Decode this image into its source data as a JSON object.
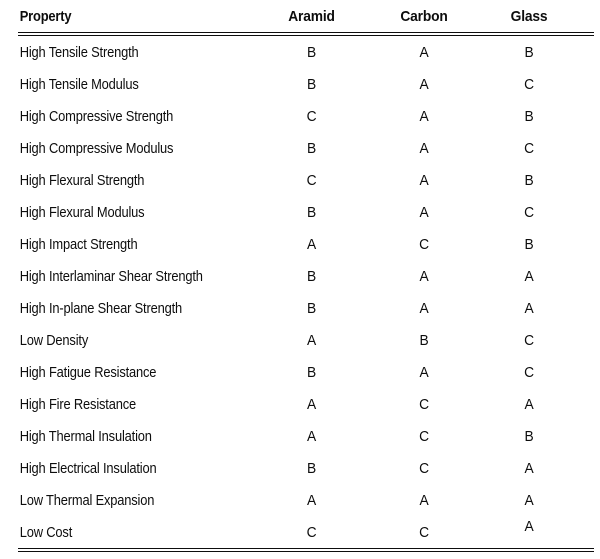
{
  "table": {
    "columns": [
      "Property",
      "Aramid",
      "Carbon",
      "Glass"
    ],
    "rows": [
      {
        "property": "High Tensile Strength",
        "aramid": "B",
        "carbon": "A",
        "glass": "B"
      },
      {
        "property": "High Tensile Modulus",
        "aramid": "B",
        "carbon": "A",
        "glass": "C"
      },
      {
        "property": "High Compressive Strength",
        "aramid": "C",
        "carbon": "A",
        "glass": "B"
      },
      {
        "property": "High Compressive Modulus",
        "aramid": "B",
        "carbon": "A",
        "glass": "C"
      },
      {
        "property": "High Flexural Strength",
        "aramid": "C",
        "carbon": "A",
        "glass": "B"
      },
      {
        "property": "High Flexural Modulus",
        "aramid": "B",
        "carbon": "A",
        "glass": "C"
      },
      {
        "property": "High Impact Strength",
        "aramid": "A",
        "carbon": "C",
        "glass": "B"
      },
      {
        "property": "High Interlaminar Shear Strength",
        "aramid": "B",
        "carbon": "A",
        "glass": "A"
      },
      {
        "property": "High In-plane Shear Strength",
        "aramid": "B",
        "carbon": "A",
        "glass": "A"
      },
      {
        "property": "Low Density",
        "aramid": "A",
        "carbon": "B",
        "glass": "C"
      },
      {
        "property": "High Fatigue Resistance",
        "aramid": "B",
        "carbon": "A",
        "glass": "C"
      },
      {
        "property": "High Fire Resistance",
        "aramid": "A",
        "carbon": "C",
        "glass": "A"
      },
      {
        "property": "High Thermal Insulation",
        "aramid": "A",
        "carbon": "C",
        "glass": "B"
      },
      {
        "property": "High Electrical Insulation",
        "aramid": "B",
        "carbon": "C",
        "glass": "A"
      },
      {
        "property": "Low Thermal Expansion",
        "aramid": "A",
        "carbon": "A",
        "glass": "A"
      },
      {
        "property": "Low Cost",
        "aramid": "C",
        "carbon": "C",
        "glass": "A"
      }
    ]
  },
  "colors": {
    "background": "#ffffff",
    "text": "#0d0d0d",
    "rule": "#0d0d0d"
  }
}
